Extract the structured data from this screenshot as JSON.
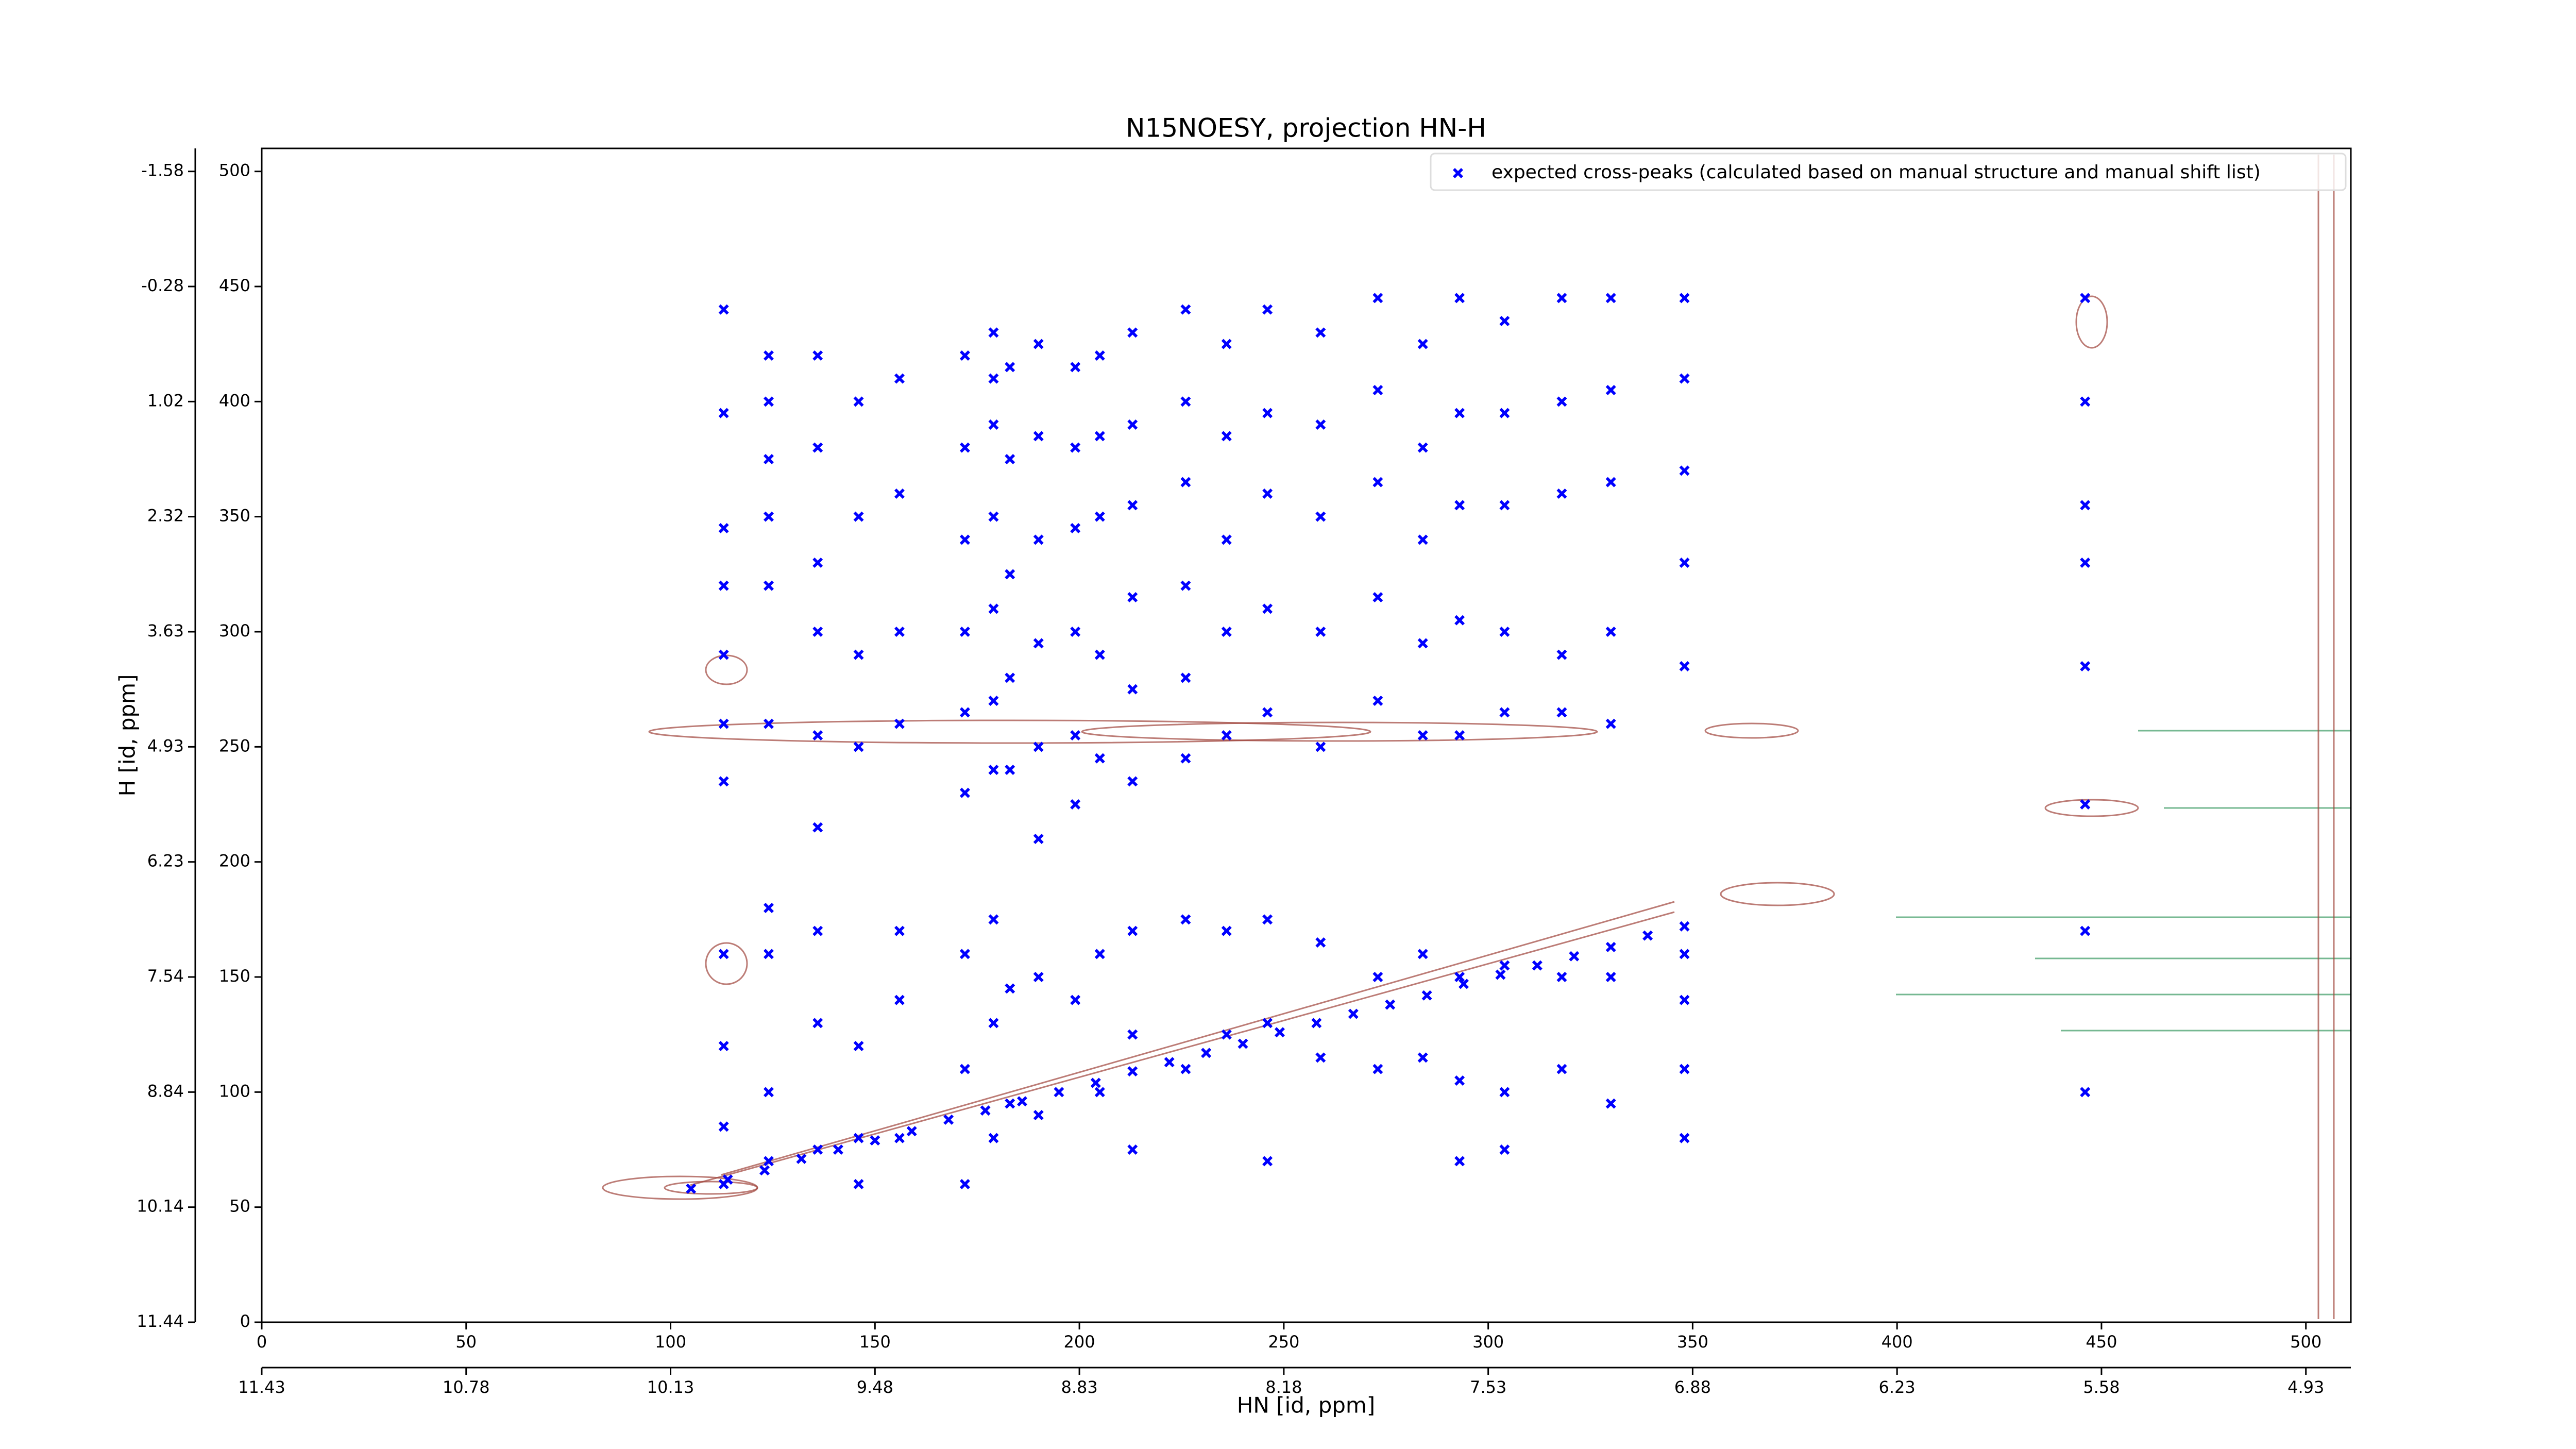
{
  "chart_data": {
    "type": "scatter",
    "title": "N15NOESY, projection HN-H",
    "xlabel": "HN [id, ppm]",
    "ylabel": "H [id, ppm]",
    "xlim": [
      0,
      511
    ],
    "ylim": [
      0,
      510
    ],
    "xticks": [
      0,
      50,
      100,
      150,
      200,
      250,
      300,
      350,
      400,
      450,
      500
    ],
    "yticks": [
      0,
      50,
      100,
      150,
      200,
      250,
      300,
      350,
      400,
      450,
      500
    ],
    "x2ticks": [
      {
        "value": 0,
        "label": "11.43"
      },
      {
        "value": 50,
        "label": "10.78"
      },
      {
        "value": 100,
        "label": "10.13"
      },
      {
        "value": 150,
        "label": "9.48"
      },
      {
        "value": 200,
        "label": "8.83"
      },
      {
        "value": 250,
        "label": "8.18"
      },
      {
        "value": 300,
        "label": "7.53"
      },
      {
        "value": 350,
        "label": "6.88"
      },
      {
        "value": 400,
        "label": "6.23"
      },
      {
        "value": 450,
        "label": "5.58"
      },
      {
        "value": 500,
        "label": "4.93"
      }
    ],
    "y2ticks": [
      {
        "value": 0,
        "label": "11.44"
      },
      {
        "value": 50,
        "label": "10.14"
      },
      {
        "value": 100,
        "label": "8.84"
      },
      {
        "value": 150,
        "label": "7.54"
      },
      {
        "value": 200,
        "label": "6.23"
      },
      {
        "value": 250,
        "label": "4.93"
      },
      {
        "value": 300,
        "label": "3.63"
      },
      {
        "value": 350,
        "label": "2.32"
      },
      {
        "value": 400,
        "label": "1.02"
      },
      {
        "value": 450,
        "label": "-0.28"
      },
      {
        "value": 500,
        "label": "-1.58"
      }
    ],
    "legend": "upper right",
    "series": [
      {
        "name": "expected cross-peaks (calculated based on manual structure and manual shift list)",
        "color": "#0000ff",
        "x": [
          113,
          113,
          113,
          113,
          113,
          113,
          113,
          113,
          113,
          113,
          113,
          124,
          124,
          124,
          124,
          124,
          124,
          124,
          124,
          124,
          124,
          136,
          136,
          136,
          136,
          136,
          136,
          136,
          136,
          136,
          146,
          146,
          146,
          146,
          146,
          146,
          146,
          156,
          156,
          156,
          156,
          156,
          156,
          156,
          172,
          172,
          172,
          172,
          172,
          172,
          172,
          172,
          172,
          179,
          179,
          179,
          179,
          179,
          179,
          179,
          179,
          179,
          179,
          183,
          183,
          183,
          183,
          183,
          183,
          183,
          190,
          190,
          190,
          190,
          190,
          190,
          190,
          190,
          199,
          199,
          199,
          199,
          199,
          199,
          199,
          205,
          205,
          205,
          205,
          205,
          205,
          205,
          213,
          213,
          213,
          213,
          213,
          213,
          213,
          213,
          213,
          226,
          226,
          226,
          226,
          226,
          226,
          226,
          226,
          236,
          236,
          236,
          236,
          236,
          236,
          236,
          246,
          246,
          246,
          246,
          246,
          246,
          246,
          246,
          259,
          259,
          259,
          259,
          259,
          259,
          259,
          273,
          273,
          273,
          273,
          273,
          273,
          273,
          284,
          284,
          284,
          284,
          284,
          284,
          284,
          293,
          293,
          293,
          293,
          293,
          293,
          293,
          293,
          304,
          304,
          304,
          304,
          304,
          304,
          304,
          304,
          318,
          318,
          318,
          318,
          318,
          318,
          318,
          330,
          330,
          330,
          330,
          330,
          330,
          330,
          348,
          348,
          348,
          348,
          348,
          348,
          348,
          348,
          348,
          446,
          446,
          446,
          446,
          446,
          446,
          446,
          446,
          105,
          114,
          123,
          132,
          141,
          150,
          159,
          168,
          177,
          186,
          195,
          204,
          213,
          222,
          231,
          240,
          249,
          258,
          267,
          276,
          285,
          294,
          303,
          312,
          321,
          330,
          339,
          348
        ],
        "values": [
          440,
          395,
          345,
          320,
          290,
          260,
          235,
          160,
          120,
          85,
          60,
          420,
          400,
          375,
          350,
          320,
          260,
          180,
          160,
          100,
          70,
          420,
          380,
          330,
          300,
          255,
          215,
          170,
          130,
          75,
          400,
          350,
          290,
          250,
          120,
          80,
          60,
          410,
          360,
          300,
          260,
          170,
          140,
          80,
          420,
          380,
          340,
          300,
          265,
          230,
          160,
          110,
          60,
          430,
          410,
          390,
          350,
          310,
          270,
          240,
          175,
          130,
          80,
          415,
          375,
          325,
          280,
          240,
          145,
          95,
          425,
          385,
          340,
          295,
          250,
          210,
          150,
          90,
          415,
          380,
          345,
          300,
          255,
          225,
          140,
          420,
          385,
          350,
          290,
          245,
          160,
          100,
          430,
          390,
          355,
          315,
          275,
          235,
          170,
          125,
          75,
          440,
          400,
          365,
          320,
          280,
          245,
          175,
          110,
          425,
          385,
          340,
          300,
          255,
          170,
          125,
          440,
          395,
          360,
          310,
          265,
          175,
          130,
          70,
          430,
          390,
          350,
          300,
          250,
          165,
          115,
          445,
          405,
          365,
          315,
          270,
          150,
          110,
          425,
          380,
          340,
          295,
          255,
          160,
          115,
          445,
          395,
          355,
          305,
          255,
          150,
          105,
          70,
          435,
          395,
          355,
          300,
          265,
          155,
          100,
          75,
          445,
          400,
          360,
          290,
          265,
          150,
          110,
          445,
          405,
          365,
          300,
          260,
          150,
          95,
          445,
          410,
          370,
          330,
          285,
          160,
          140,
          110,
          80,
          445,
          400,
          355,
          330,
          285,
          225,
          170,
          100,
          58,
          62,
          66,
          71,
          75,
          79,
          83,
          88,
          92,
          96,
          100,
          104,
          109,
          113,
          117,
          121,
          126,
          130,
          134,
          138,
          142,
          147,
          151,
          155,
          159,
          163,
          168,
          172
        ]
      }
    ]
  }
}
